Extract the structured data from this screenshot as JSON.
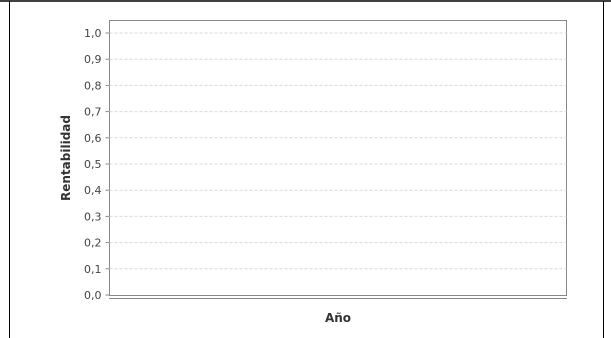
{
  "chart_data": {
    "type": "line",
    "title": "",
    "xlabel": "Año",
    "ylabel": "Rentabilidad",
    "categories": [],
    "series": [],
    "ylim": [
      0,
      1
    ],
    "y_ticks": [
      "0,0",
      "0,1",
      "0,2",
      "0,3",
      "0,4",
      "0,5",
      "0,6",
      "0,7",
      "0,8",
      "0,9",
      "1,0"
    ],
    "grid": true
  },
  "colors": {
    "background": "#ffffff",
    "plot_background": "#ffffff",
    "gridline": "#d9d9d9",
    "axis": "#888888",
    "frame": "#000000"
  }
}
